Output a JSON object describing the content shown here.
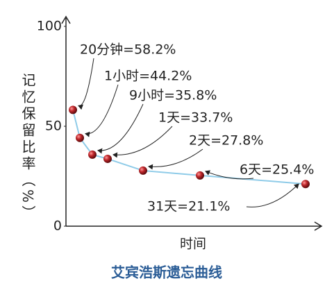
{
  "chart_data": {
    "type": "line",
    "title": "艾宾浩斯遗忘曲线",
    "x_label": "时间",
    "y_label": "记忆保留比率（%）",
    "values": [
      58.2,
      44.2,
      35.8,
      33.7,
      27.8,
      25.4,
      21.1
    ],
    "value_labels": [
      "20分钟=58.2%",
      "1小时=44.2%",
      "9小时=35.8%",
      "1天=33.7%",
      "2天=27.8%",
      "6天=25.4%",
      "31天=21.1%"
    ],
    "color": "#8ecbe8",
    "marker_color": "#c0282c",
    "ylim": [
      0,
      100
    ],
    "yticks": [
      0,
      50,
      100
    ]
  }
}
